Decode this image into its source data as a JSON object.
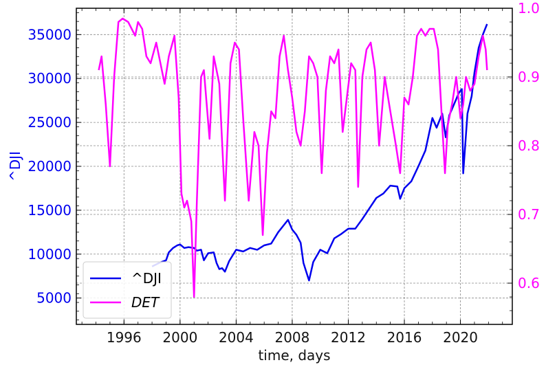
{
  "chart_data": {
    "type": "line",
    "xlabel": "time, days",
    "ylabel_left": "^DJI",
    "ylabel_right": "",
    "xlim": [
      1992.6,
      2023.7
    ],
    "ylim_left": [
      2000,
      38000
    ],
    "ylim_right": [
      0.54,
      1.0
    ],
    "x_ticks": [
      1996,
      2000,
      2004,
      2008,
      2012,
      2016,
      2020
    ],
    "y_ticks_left": [
      5000,
      10000,
      15000,
      20000,
      25000,
      30000,
      35000
    ],
    "y_ticks_right": [
      0.6,
      0.7,
      0.8,
      0.9,
      1.0
    ],
    "grid": true,
    "legend_position": "lower-left",
    "legend": [
      {
        "label": "^DJI",
        "italic": false
      },
      {
        "label": "DET",
        "italic": true
      }
    ],
    "series": [
      {
        "name": "^DJI",
        "axis": "left",
        "color": "#0000ee",
        "x": [
          1998.0,
          1998.5,
          1999.0,
          1999.2,
          1999.5,
          1999.8,
          2000.0,
          2000.3,
          2000.6,
          2001.0,
          2001.2,
          2001.5,
          2001.7,
          2002.0,
          2002.4,
          2002.6,
          2002.8,
          2003.0,
          2003.2,
          2003.5,
          2004.0,
          2004.5,
          2005.0,
          2005.5,
          2006.0,
          2006.5,
          2007.0,
          2007.4,
          2007.7,
          2008.0,
          2008.3,
          2008.6,
          2008.8,
          2009.0,
          2009.2,
          2009.5,
          2010.0,
          2010.5,
          2011.0,
          2011.5,
          2012.0,
          2012.5,
          2013.0,
          2013.5,
          2014.0,
          2014.5,
          2015.0,
          2015.5,
          2015.7,
          2016.0,
          2016.5,
          2017.0,
          2017.5,
          2018.0,
          2018.3,
          2018.7,
          2018.95,
          2019.2,
          2019.5,
          2019.9,
          2020.1,
          2020.2,
          2020.5,
          2020.8,
          2021.0,
          2021.3,
          2021.6,
          2021.9
        ],
        "y": [
          8600,
          9000,
          9300,
          10200,
          10700,
          11000,
          11100,
          10700,
          10800,
          10700,
          10400,
          10500,
          9300,
          10100,
          10200,
          9000,
          8300,
          8400,
          8000,
          9200,
          10500,
          10300,
          10700,
          10500,
          11000,
          11200,
          12500,
          13300,
          13900,
          12800,
          12200,
          11300,
          9000,
          8000,
          7000,
          9100,
          10500,
          10100,
          11800,
          12300,
          12900,
          12900,
          14000,
          15200,
          16400,
          16900,
          17800,
          17700,
          16300,
          17500,
          18300,
          20000,
          21800,
          25500,
          24400,
          26000,
          23300,
          25800,
          26900,
          28400,
          28800,
          19200,
          26000,
          28000,
          30700,
          33500,
          35000,
          36200
        ]
      },
      {
        "name": "DET",
        "axis": "right",
        "color": "#ff00ff",
        "x": [
          1994.2,
          1994.4,
          1994.7,
          1995.0,
          1995.3,
          1995.6,
          1995.9,
          1996.3,
          1996.8,
          1997.0,
          1997.3,
          1997.6,
          1997.9,
          1998.3,
          1998.6,
          1998.9,
          1999.2,
          1999.6,
          1999.9,
          2000.1,
          2000.3,
          2000.5,
          2000.8,
          2001.0,
          2001.2,
          2001.5,
          2001.7,
          2001.9,
          2002.1,
          2002.4,
          2002.6,
          2002.8,
          2003.2,
          2003.6,
          2003.9,
          2004.2,
          2004.5,
          2004.9,
          2005.3,
          2005.6,
          2005.9,
          2006.2,
          2006.5,
          2006.8,
          2007.1,
          2007.4,
          2007.7,
          2008.0,
          2008.3,
          2008.6,
          2008.9,
          2009.2,
          2009.5,
          2009.8,
          2010.1,
          2010.4,
          2010.7,
          2011.0,
          2011.3,
          2011.6,
          2011.9,
          2012.2,
          2012.5,
          2012.7,
          2013.0,
          2013.3,
          2013.6,
          2013.9,
          2014.2,
          2014.6,
          2015.0,
          2015.4,
          2015.7,
          2016.0,
          2016.3,
          2016.6,
          2016.9,
          2017.2,
          2017.5,
          2017.8,
          2018.1,
          2018.4,
          2018.7,
          2018.9,
          2019.1,
          2019.4,
          2019.7,
          2020.0,
          2020.2,
          2020.4,
          2020.7,
          2021.0,
          2021.3,
          2021.6,
          2021.8,
          2021.9
        ],
        "y": [
          0.91,
          0.93,
          0.86,
          0.77,
          0.9,
          0.98,
          0.985,
          0.98,
          0.96,
          0.98,
          0.97,
          0.93,
          0.92,
          0.95,
          0.92,
          0.89,
          0.93,
          0.96,
          0.87,
          0.73,
          0.71,
          0.72,
          0.69,
          0.58,
          0.72,
          0.9,
          0.91,
          0.86,
          0.81,
          0.93,
          0.91,
          0.89,
          0.72,
          0.92,
          0.95,
          0.94,
          0.84,
          0.72,
          0.82,
          0.8,
          0.67,
          0.79,
          0.85,
          0.84,
          0.93,
          0.96,
          0.91,
          0.87,
          0.82,
          0.8,
          0.85,
          0.93,
          0.92,
          0.9,
          0.76,
          0.88,
          0.93,
          0.92,
          0.94,
          0.82,
          0.87,
          0.92,
          0.91,
          0.74,
          0.9,
          0.94,
          0.95,
          0.91,
          0.8,
          0.9,
          0.85,
          0.8,
          0.76,
          0.87,
          0.86,
          0.9,
          0.96,
          0.97,
          0.96,
          0.97,
          0.97,
          0.94,
          0.83,
          0.76,
          0.83,
          0.86,
          0.9,
          0.84,
          0.86,
          0.9,
          0.88,
          0.89,
          0.93,
          0.96,
          0.94,
          0.91
        ]
      }
    ]
  }
}
